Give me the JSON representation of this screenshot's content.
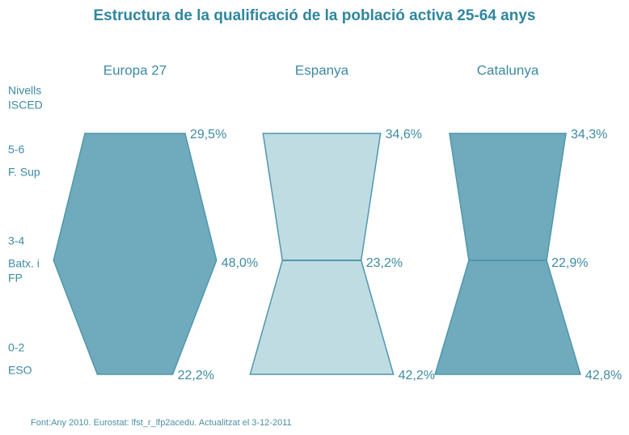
{
  "chart_data": {
    "type": "profile",
    "title": "Estructura de la qualificació de la població activa 25-64 anys",
    "axis_title": [
      "Nivells",
      "ISCED"
    ],
    "levels": [
      {
        "code": "5-6",
        "name": [
          "F. Sup"
        ]
      },
      {
        "code": "3-4",
        "name": [
          "Batx. i",
          "FP"
        ]
      },
      {
        "code": "0-2",
        "name": [
          "ESO"
        ]
      }
    ],
    "series": [
      {
        "name": "Europa 27",
        "color": "#6fabbd",
        "values": [
          29.5,
          48.0,
          22.2
        ],
        "value_labels": [
          "29,5%",
          "48,0%",
          "22,2%"
        ]
      },
      {
        "name": "Espanya",
        "color": "#bfdce3",
        "values": [
          34.6,
          23.2,
          42.2
        ],
        "value_labels": [
          "34,6%",
          "23,2%",
          "42,2%"
        ]
      },
      {
        "name": "Catalunya",
        "color": "#6fabbd",
        "values": [
          34.3,
          22.9,
          42.8
        ],
        "value_labels": [
          "34,3%",
          "22,9%",
          "42,8%"
        ]
      }
    ],
    "source": "Font:Any 2010. Eurostat: lfst_r_lfp2acedu. Actualitzat el 3-12-2011"
  }
}
